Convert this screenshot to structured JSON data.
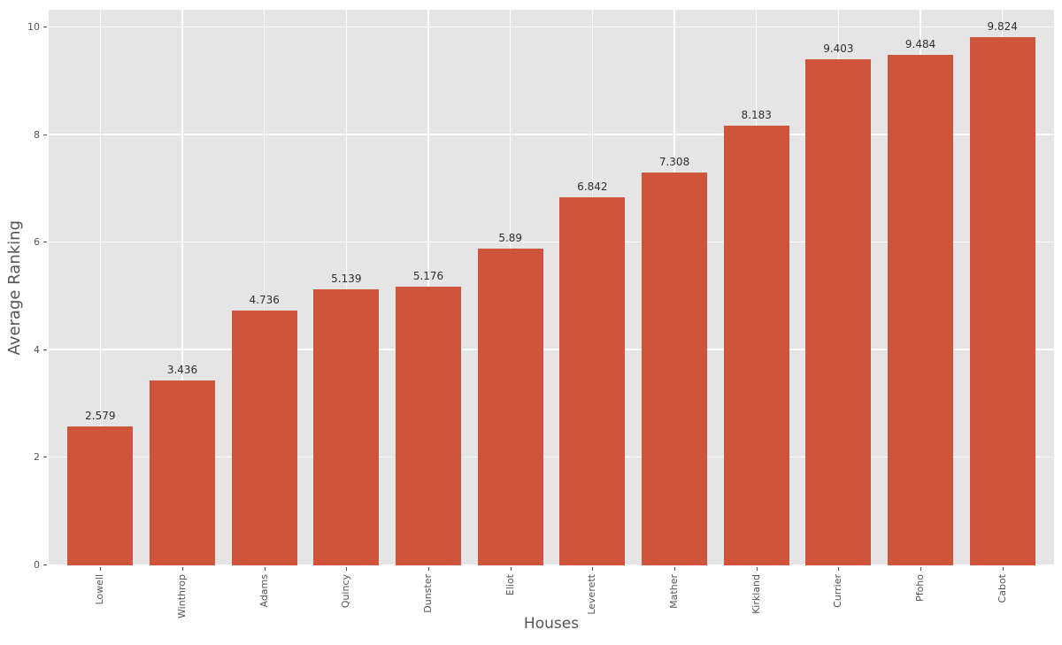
{
  "chart_data": {
    "type": "bar",
    "title": "",
    "xlabel": "Houses",
    "ylabel": "Average Ranking",
    "categories": [
      "Lowell",
      "Winthrop",
      "Adams",
      "Quincy",
      "Dunster",
      "Eliot",
      "Leverett",
      "Mather",
      "Kirkland",
      "Currier",
      "Pfoho",
      "Cabot"
    ],
    "values": [
      2.579,
      3.436,
      4.736,
      5.139,
      5.176,
      5.89,
      6.842,
      7.308,
      8.183,
      9.403,
      9.484,
      9.824
    ],
    "value_labels": [
      "2.579",
      "3.436",
      "4.736",
      "5.139",
      "5.176",
      "5.89",
      "6.842",
      "7.308",
      "8.183",
      "9.403",
      "9.484",
      "9.824"
    ],
    "yticks": [
      0,
      2,
      4,
      6,
      8,
      10
    ],
    "ytick_labels": [
      "0",
      "2",
      "4",
      "6",
      "8",
      "10"
    ],
    "ylim": [
      0,
      10.33
    ],
    "grid": "horizontal and vertical white gridlines on gray panel",
    "legend": "none",
    "bar_width_fraction": 0.8
  },
  "style": {
    "bar_color": "#ce553b",
    "plot_background": "#e5e5e5",
    "figure_background": "#ffffff",
    "grid_color": "#ffffff",
    "tick_text_color": "#555555",
    "axis_label_color": "#555555",
    "value_label_color": "#2e2e2e"
  }
}
